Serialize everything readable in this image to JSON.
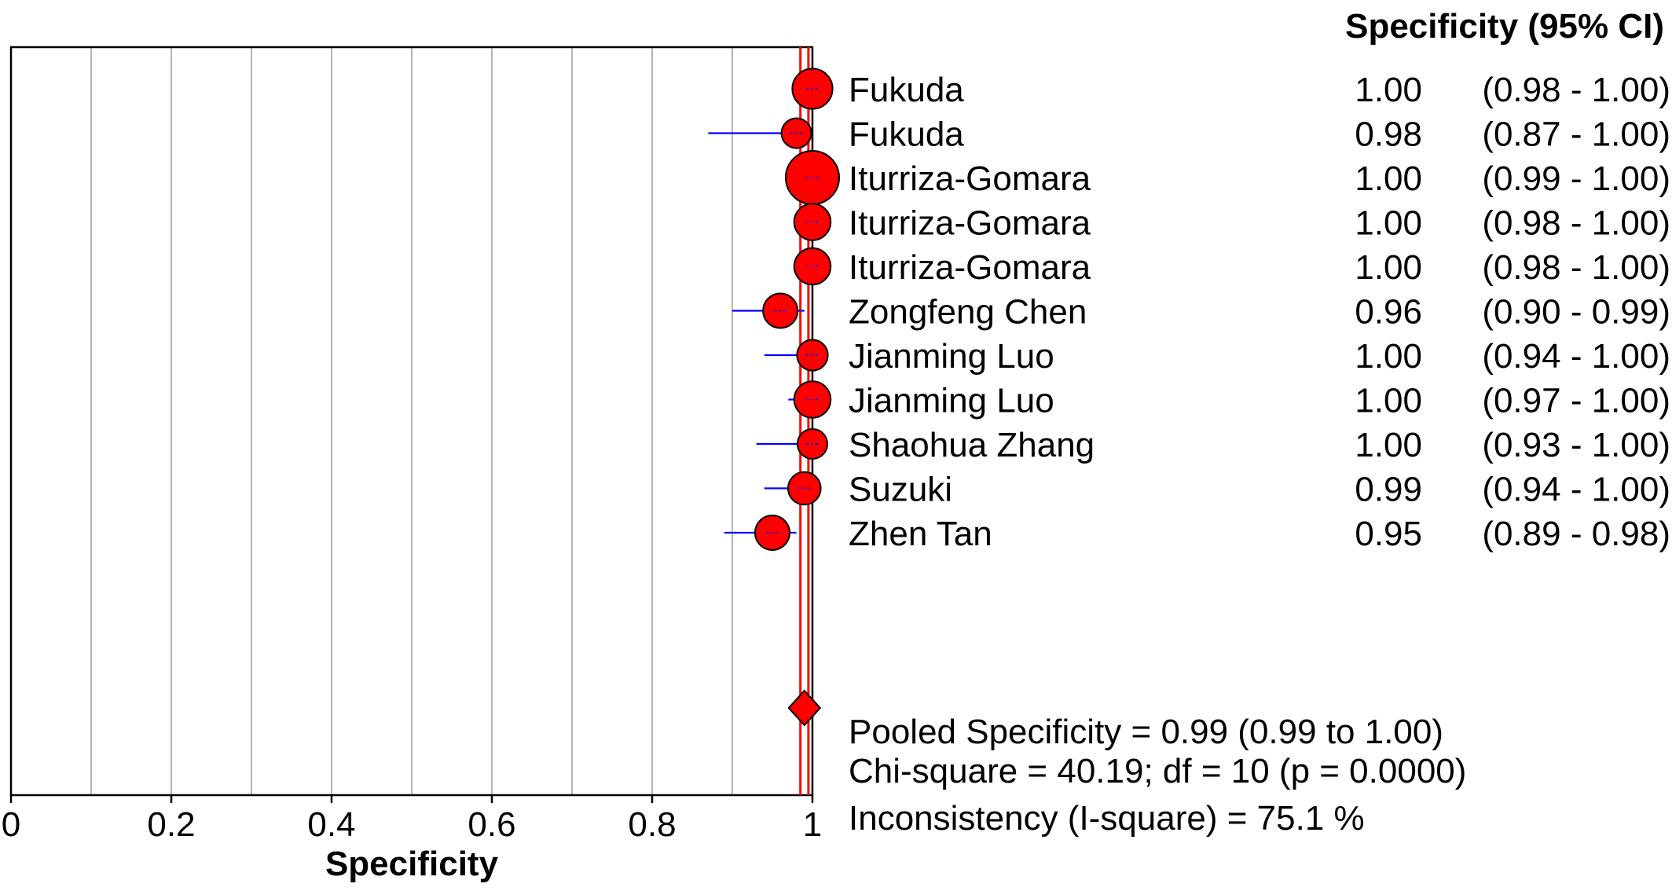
{
  "chart_data": {
    "type": "forest",
    "header": "Specificity (95% CI)",
    "xlabel": "Specificity",
    "xlim": [
      0,
      1
    ],
    "xticks": [
      "0",
      "0.2",
      "0.4",
      "0.6",
      "0.8",
      "1"
    ],
    "gridlines": [
      0.1,
      0.2,
      0.3,
      0.4,
      0.5,
      0.6,
      0.7,
      0.8,
      0.9
    ],
    "studies": [
      {
        "name": "Fukuda",
        "est": 1.0,
        "lo": 0.98,
        "hi": 1.0,
        "est_text": "1.00",
        "ci_text": "(0.98 - 1.00)",
        "weight": 2.6
      },
      {
        "name": "Fukuda",
        "est": 0.98,
        "lo": 0.87,
        "hi": 1.0,
        "est_text": "0.98",
        "ci_text": "(0.87 - 1.00)",
        "weight": 1.5
      },
      {
        "name": "Iturriza-Gomara",
        "est": 1.0,
        "lo": 0.99,
        "hi": 1.0,
        "est_text": "1.00",
        "ci_text": "(0.99 - 1.00)",
        "weight": 4.0
      },
      {
        "name": "Iturriza-Gomara",
        "est": 1.0,
        "lo": 0.98,
        "hi": 1.0,
        "est_text": "1.00",
        "ci_text": "(0.98 - 1.00)",
        "weight": 2.2
      },
      {
        "name": "Iturriza-Gomara",
        "est": 1.0,
        "lo": 0.98,
        "hi": 1.0,
        "est_text": "1.00",
        "ci_text": "(0.98 - 1.00)",
        "weight": 2.2
      },
      {
        "name": "Zongfeng Chen",
        "est": 0.96,
        "lo": 0.9,
        "hi": 0.99,
        "est_text": "0.96",
        "ci_text": "(0.90 - 0.99)",
        "weight": 2.0
      },
      {
        "name": "Jianming Luo",
        "est": 1.0,
        "lo": 0.94,
        "hi": 1.0,
        "est_text": "1.00",
        "ci_text": "(0.94 - 1.00)",
        "weight": 1.6
      },
      {
        "name": "Jianming Luo",
        "est": 1.0,
        "lo": 0.97,
        "hi": 1.0,
        "est_text": "1.00",
        "ci_text": "(0.97 - 1.00)",
        "weight": 2.2
      },
      {
        "name": "Shaohua Zhang",
        "est": 1.0,
        "lo": 0.93,
        "hi": 1.0,
        "est_text": "1.00",
        "ci_text": "(0.93 - 1.00)",
        "weight": 1.5
      },
      {
        "name": "Suzuki",
        "est": 0.99,
        "lo": 0.94,
        "hi": 1.0,
        "est_text": "0.99",
        "ci_text": "(0.94 - 1.00)",
        "weight": 1.8
      },
      {
        "name": "Zhen Tan",
        "est": 0.95,
        "lo": 0.89,
        "hi": 0.98,
        "est_text": "0.95",
        "ci_text": "(0.89 - 0.98)",
        "weight": 2.0
      }
    ],
    "pooled": {
      "est": 0.99,
      "lo": 0.985,
      "hi": 0.995
    },
    "summary": [
      "Pooled Specificity = 0.99 (0.99 to 1.00)",
      "Chi-square = 40.19; df =  10 (p = 0.0000)",
      "Inconsistency (I-square) = 75.1 %"
    ],
    "colors": {
      "marker": "#ff0000",
      "ci_line": "#0000ff",
      "pooled_line": "#ff0000",
      "grid": "#b4b4b4",
      "axis": "#000000"
    }
  }
}
